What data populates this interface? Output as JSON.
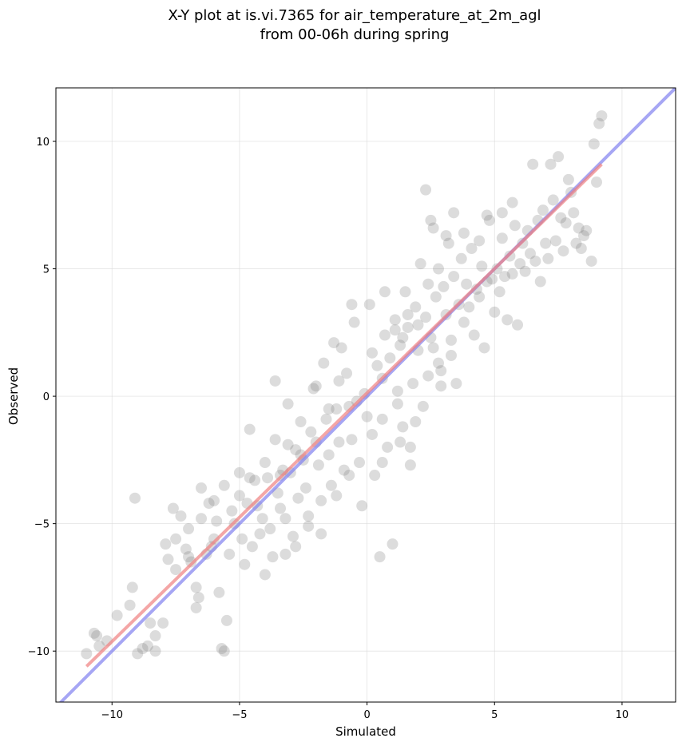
{
  "chart_data": {
    "type": "scatter",
    "title_line1": "X-Y plot at is.vi.7365 for air_temperature_at_2m_agl",
    "title_line2": "from 00-06h during spring",
    "xlabel": "Simulated",
    "ylabel": "Observed",
    "xlim": [
      -12.2,
      12.1
    ],
    "ylim": [
      -12.0,
      12.1
    ],
    "xticks": [
      -10,
      -5,
      0,
      5,
      10
    ],
    "yticks": [
      -10,
      -5,
      0,
      5,
      10
    ],
    "xtick_labels": [
      "−10",
      "−5",
      "0",
      "5",
      "10"
    ],
    "ytick_labels": [
      "−10",
      "−5",
      "0",
      "5",
      "10"
    ],
    "grid": true,
    "point_color": "#808080",
    "fit_color": "#f08080",
    "identity_color": "#8080f0",
    "identity_line": {
      "x": [
        -12.2,
        12.1
      ],
      "y": [
        -12.2,
        12.1
      ]
    },
    "fit_line": {
      "x": [
        -11.0,
        9.2
      ],
      "y": [
        -10.6,
        9.1
      ]
    },
    "points": [
      [
        -11.0,
        -10.1
      ],
      [
        -10.7,
        -9.3
      ],
      [
        -10.6,
        -9.4
      ],
      [
        -10.2,
        -9.6
      ],
      [
        -10.5,
        -9.8
      ],
      [
        -9.8,
        -8.6
      ],
      [
        -9.3,
        -8.2
      ],
      [
        -9.2,
        -7.5
      ],
      [
        -9.1,
        -4.0
      ],
      [
        -9.0,
        -10.1
      ],
      [
        -8.8,
        -9.9
      ],
      [
        -8.6,
        -9.8
      ],
      [
        -8.3,
        -9.4
      ],
      [
        -8.5,
        -8.9
      ],
      [
        -8.3,
        -10.0
      ],
      [
        -8.0,
        -8.9
      ],
      [
        -7.9,
        -5.8
      ],
      [
        -7.8,
        -6.4
      ],
      [
        -7.6,
        -4.4
      ],
      [
        -7.5,
        -6.8
      ],
      [
        -7.3,
        -4.7
      ],
      [
        -7.1,
        -6.0
      ],
      [
        -7.0,
        -6.3
      ],
      [
        -6.9,
        -6.5
      ],
      [
        -6.7,
        -7.5
      ],
      [
        -6.7,
        -8.3
      ],
      [
        -6.6,
        -7.9
      ],
      [
        -6.5,
        -3.6
      ],
      [
        -6.3,
        -6.2
      ],
      [
        -6.2,
        -4.2
      ],
      [
        -6.1,
        -5.9
      ],
      [
        -6.0,
        -5.6
      ],
      [
        -5.9,
        -4.9
      ],
      [
        -5.8,
        -7.7
      ],
      [
        -5.7,
        -9.9
      ],
      [
        -5.6,
        -10.0
      ],
      [
        -5.5,
        -8.8
      ],
      [
        -5.4,
        -6.2
      ],
      [
        -5.3,
        -4.5
      ],
      [
        -5.2,
        -5.0
      ],
      [
        -5.0,
        -3.9
      ],
      [
        -4.9,
        -5.6
      ],
      [
        -4.8,
        -6.6
      ],
      [
        -4.7,
        -4.2
      ],
      [
        -4.6,
        -1.3
      ],
      [
        -4.5,
        -5.9
      ],
      [
        -4.4,
        -3.3
      ],
      [
        -4.3,
        -4.3
      ],
      [
        -4.2,
        -5.4
      ],
      [
        -4.1,
        -4.8
      ],
      [
        -4.0,
        -7.0
      ],
      [
        -3.9,
        -3.2
      ],
      [
        -3.8,
        -5.2
      ],
      [
        -3.7,
        -6.3
      ],
      [
        -3.6,
        0.6
      ],
      [
        -3.6,
        -1.7
      ],
      [
        -3.5,
        -3.8
      ],
      [
        -3.4,
        -4.4
      ],
      [
        -3.3,
        -2.9
      ],
      [
        -3.2,
        -6.2
      ],
      [
        -3.1,
        -0.3
      ],
      [
        -3.0,
        -3.0
      ],
      [
        -2.9,
        -5.5
      ],
      [
        -2.8,
        -2.1
      ],
      [
        -2.7,
        -4.0
      ],
      [
        -2.6,
        -1.0
      ],
      [
        -2.5,
        -2.5
      ],
      [
        -2.4,
        -3.6
      ],
      [
        -2.3,
        -5.1
      ],
      [
        -2.2,
        -1.4
      ],
      [
        -2.1,
        0.3
      ],
      [
        -2.0,
        0.4
      ],
      [
        -1.9,
        -2.7
      ],
      [
        -1.8,
        -4.1
      ],
      [
        -1.7,
        1.3
      ],
      [
        -1.6,
        -0.9
      ],
      [
        -1.5,
        -2.3
      ],
      [
        -1.4,
        -3.5
      ],
      [
        -1.3,
        2.1
      ],
      [
        -1.2,
        -0.5
      ],
      [
        -1.1,
        -1.8
      ],
      [
        -1.0,
        1.9
      ],
      [
        -0.9,
        -2.9
      ],
      [
        -0.8,
        0.9
      ],
      [
        -0.7,
        -0.4
      ],
      [
        -0.6,
        -1.7
      ],
      [
        -0.5,
        2.9
      ],
      [
        -0.4,
        -0.2
      ],
      [
        -0.3,
        -2.6
      ],
      [
        -0.2,
        -4.3
      ],
      [
        -0.1,
        0.1
      ],
      [
        0.0,
        -0.8
      ],
      [
        0.1,
        3.6
      ],
      [
        0.2,
        -1.5
      ],
      [
        0.3,
        -3.1
      ],
      [
        0.4,
        1.2
      ],
      [
        0.5,
        -6.3
      ],
      [
        0.6,
        -0.9
      ],
      [
        0.7,
        2.4
      ],
      [
        0.8,
        -2.0
      ],
      [
        0.9,
        1.5
      ],
      [
        1.0,
        -5.8
      ],
      [
        1.1,
        3.0
      ],
      [
        1.2,
        -0.3
      ],
      [
        1.3,
        2.0
      ],
      [
        1.4,
        -1.2
      ],
      [
        1.5,
        4.1
      ],
      [
        1.6,
        2.7
      ],
      [
        1.7,
        -2.7
      ],
      [
        1.8,
        0.5
      ],
      [
        1.9,
        3.5
      ],
      [
        2.0,
        1.8
      ],
      [
        2.1,
        5.2
      ],
      [
        2.2,
        -0.4
      ],
      [
        2.3,
        3.1
      ],
      [
        2.4,
        4.4
      ],
      [
        2.5,
        2.3
      ],
      [
        2.6,
        6.6
      ],
      [
        2.7,
        3.9
      ],
      [
        2.8,
        5.0
      ],
      [
        2.9,
        1.0
      ],
      [
        3.0,
        4.3
      ],
      [
        3.1,
        3.2
      ],
      [
        3.2,
        6.0
      ],
      [
        3.3,
        2.2
      ],
      [
        3.4,
        4.7
      ],
      [
        3.5,
        0.5
      ],
      [
        3.6,
        3.6
      ],
      [
        3.7,
        5.4
      ],
      [
        3.8,
        2.9
      ],
      [
        3.9,
        4.4
      ],
      [
        4.0,
        3.5
      ],
      [
        4.1,
        5.8
      ],
      [
        4.2,
        2.4
      ],
      [
        4.3,
        4.2
      ],
      [
        4.4,
        3.9
      ],
      [
        4.5,
        5.1
      ],
      [
        4.6,
        1.9
      ],
      [
        4.7,
        4.5
      ],
      [
        4.8,
        6.9
      ],
      [
        4.9,
        4.6
      ],
      [
        5.0,
        3.3
      ],
      [
        5.1,
        5.0
      ],
      [
        5.2,
        4.1
      ],
      [
        5.3,
        6.2
      ],
      [
        5.4,
        4.7
      ],
      [
        5.5,
        3.0
      ],
      [
        5.6,
        5.5
      ],
      [
        5.7,
        4.8
      ],
      [
        5.8,
        6.7
      ],
      [
        5.9,
        2.8
      ],
      [
        6.0,
        5.2
      ],
      [
        6.1,
        6.0
      ],
      [
        6.2,
        4.9
      ],
      [
        6.3,
        6.5
      ],
      [
        6.4,
        5.6
      ],
      [
        6.5,
        9.1
      ],
      [
        6.6,
        5.3
      ],
      [
        6.7,
        6.9
      ],
      [
        6.8,
        4.5
      ],
      [
        6.9,
        7.3
      ],
      [
        7.0,
        6.0
      ],
      [
        7.1,
        5.4
      ],
      [
        7.2,
        9.1
      ],
      [
        7.3,
        7.7
      ],
      [
        7.4,
        6.1
      ],
      [
        7.5,
        9.4
      ],
      [
        7.6,
        7.0
      ],
      [
        7.7,
        5.7
      ],
      [
        7.8,
        6.8
      ],
      [
        7.9,
        8.5
      ],
      [
        8.0,
        8.0
      ],
      [
        8.1,
        7.2
      ],
      [
        8.2,
        6.0
      ],
      [
        8.3,
        6.6
      ],
      [
        8.4,
        5.8
      ],
      [
        8.5,
        6.3
      ],
      [
        8.6,
        6.5
      ],
      [
        8.8,
        5.3
      ],
      [
        8.9,
        9.9
      ],
      [
        9.0,
        8.4
      ],
      [
        9.1,
        10.7
      ],
      [
        9.2,
        11.0
      ],
      [
        2.3,
        8.1
      ],
      [
        2.5,
        6.9
      ],
      [
        3.1,
        6.3
      ],
      [
        3.4,
        7.2
      ],
      [
        3.8,
        6.4
      ],
      [
        4.4,
        6.1
      ],
      [
        4.7,
        7.1
      ],
      [
        5.3,
        7.2
      ],
      [
        5.7,
        7.6
      ],
      [
        1.6,
        3.2
      ],
      [
        2.0,
        2.8
      ],
      [
        2.6,
        1.9
      ],
      [
        2.8,
        1.3
      ],
      [
        3.3,
        1.6
      ],
      [
        1.4,
        2.3
      ],
      [
        1.1,
        2.6
      ],
      [
        0.7,
        4.1
      ],
      [
        -0.6,
        3.6
      ],
      [
        0.2,
        1.7
      ],
      [
        0.6,
        0.7
      ],
      [
        1.2,
        0.2
      ],
      [
        1.9,
        -1.0
      ],
      [
        2.4,
        0.8
      ],
      [
        2.9,
        0.4
      ],
      [
        1.7,
        -2.0
      ],
      [
        1.3,
        -1.8
      ],
      [
        0.6,
        -2.6
      ],
      [
        -1.1,
        0.6
      ],
      [
        -1.5,
        -0.5
      ],
      [
        -2.0,
        -1.8
      ],
      [
        -2.6,
        -2.3
      ],
      [
        -3.1,
        -1.9
      ],
      [
        -3.4,
        -3.1
      ],
      [
        -4.0,
        -2.6
      ],
      [
        -4.6,
        -3.2
      ],
      [
        -5.0,
        -3.0
      ],
      [
        -5.6,
        -3.5
      ],
      [
        -6.0,
        -4.1
      ],
      [
        -6.5,
        -4.8
      ],
      [
        -7.0,
        -5.2
      ],
      [
        -7.5,
        -5.6
      ],
      [
        -3.2,
        -4.8
      ],
      [
        -2.8,
        -5.9
      ],
      [
        -2.3,
        -4.7
      ],
      [
        -1.8,
        -5.4
      ],
      [
        -1.2,
        -3.9
      ],
      [
        -0.7,
        -3.1
      ]
    ]
  }
}
